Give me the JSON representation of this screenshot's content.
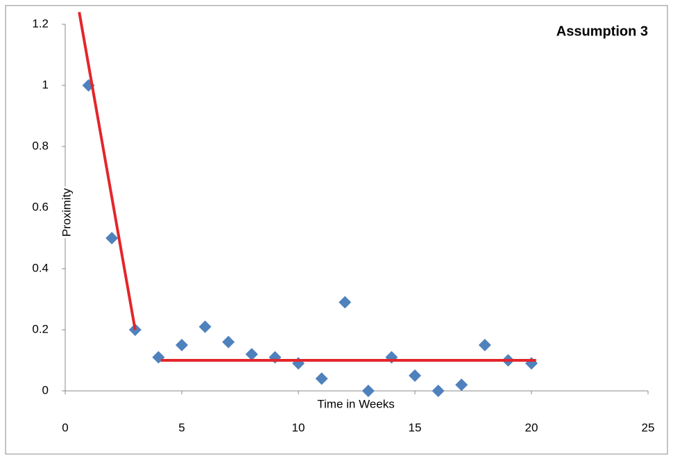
{
  "chart_data": {
    "type": "scatter",
    "title": "Assumption 3",
    "x_label": "Time in Weeks",
    "y_label": "Proximity",
    "xlim": [
      0,
      25
    ],
    "xticks": [
      0,
      5,
      10,
      15,
      20,
      25
    ],
    "ylim": [
      0,
      1.2
    ],
    "yticks": [
      0,
      0.2,
      0.4,
      0.6,
      0.8,
      1,
      1.2
    ],
    "series": [
      {
        "type": "scatter",
        "color": "#4f81bd",
        "x": [
          1,
          2,
          3,
          4,
          5,
          6,
          7,
          8,
          9,
          10,
          11,
          12,
          13,
          14,
          15,
          16,
          17,
          18,
          19,
          20
        ],
        "values": [
          1.0,
          0.5,
          0.2,
          0.11,
          0.15,
          0.21,
          0.16,
          0.12,
          0.11,
          0.09,
          0.04,
          0.29,
          0.0,
          0.11,
          0.05,
          0.0,
          0.02,
          0.15,
          0.1,
          0.09
        ]
      },
      {
        "type": "line",
        "color": "#e3262b",
        "x": [
          0.6,
          3
        ],
        "values": [
          1.24,
          0.2
        ]
      },
      {
        "type": "line",
        "color": "#e3262b",
        "x": [
          4.1,
          20.2
        ],
        "values": [
          0.1,
          0.1
        ]
      }
    ]
  }
}
